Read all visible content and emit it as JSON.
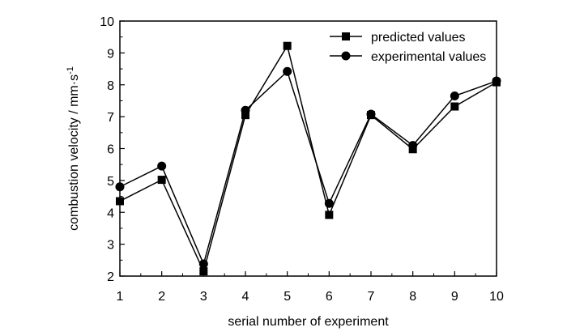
{
  "chart_data": {
    "type": "line",
    "title": "",
    "xlabel": "serial number of experiment",
    "ylabel": "combustion velocity / mm·s",
    "ylabel_sup": "-1",
    "x": [
      1,
      2,
      3,
      4,
      5,
      6,
      7,
      8,
      9,
      10
    ],
    "xlim": [
      1,
      10
    ],
    "ylim": [
      2,
      10
    ],
    "xticks": [
      "1",
      "2",
      "3",
      "4",
      "5",
      "6",
      "7",
      "8",
      "9",
      "10"
    ],
    "yticks": [
      "2",
      "3",
      "4",
      "5",
      "6",
      "7",
      "8",
      "9",
      "10"
    ],
    "grid": false,
    "legend_position": "top-right",
    "series": [
      {
        "name": "predicted values",
        "marker": "square",
        "color": "#000000",
        "values": [
          4.35,
          5.02,
          2.15,
          7.05,
          9.22,
          3.92,
          7.05,
          5.98,
          7.32,
          8.08
        ]
      },
      {
        "name": "experimental values",
        "marker": "circle",
        "color": "#000000",
        "values": [
          4.8,
          5.45,
          2.38,
          7.2,
          8.42,
          4.28,
          7.08,
          6.1,
          7.65,
          8.12
        ]
      }
    ]
  }
}
